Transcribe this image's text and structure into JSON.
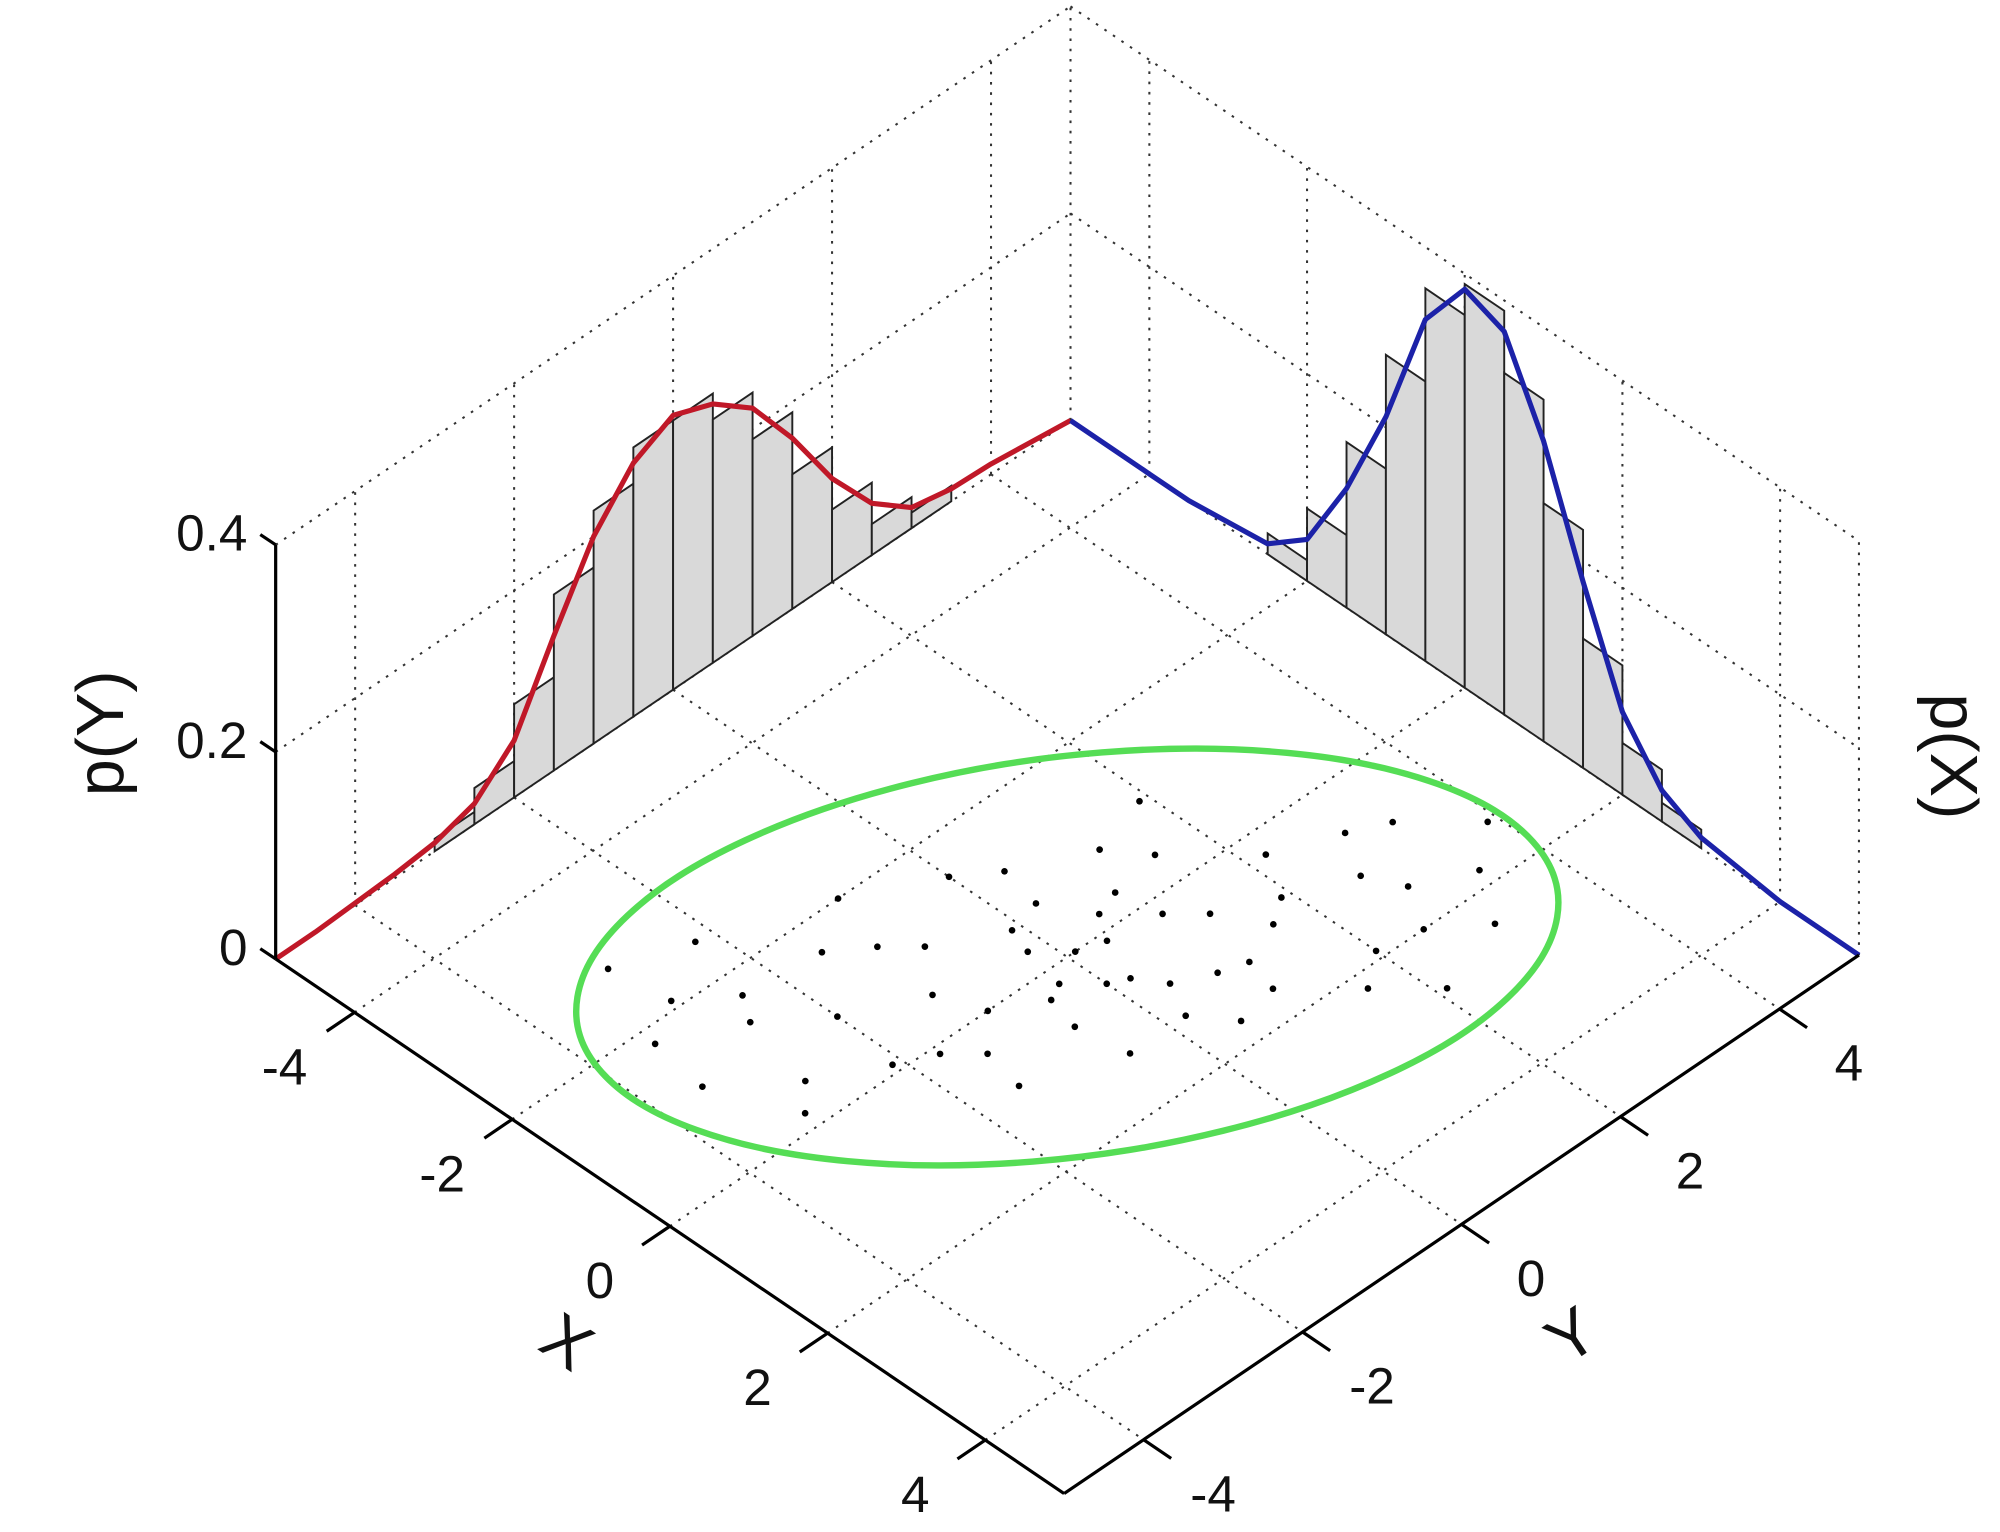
{
  "chart_data": {
    "type": "scatter",
    "xlabel": "X",
    "ylabel": "Y",
    "zlabel_left": "p(Y)",
    "zlabel_right": "p(X)",
    "xlim": [
      -5,
      5
    ],
    "xticks": [
      -4,
      -2,
      0,
      2,
      4
    ],
    "ylim": [
      -5,
      5
    ],
    "yticks": [
      -4,
      -2,
      0,
      2,
      4
    ],
    "zlim": [
      0,
      0.4
    ],
    "zticks": [
      0,
      0.2,
      0.4
    ],
    "grid": true,
    "y_marginal": {
      "color": "#c01828",
      "y": [
        -5,
        -4.5,
        -4,
        -3.5,
        -3,
        -2.5,
        -2,
        -1.5,
        -1,
        -0.5,
        0,
        0.5,
        1,
        1.5,
        2,
        2.5,
        3,
        3.5,
        4,
        4.5,
        5
      ],
      "values": [
        0,
        0,
        0.002,
        0.004,
        0.008,
        0.02,
        0.055,
        0.13,
        0.2,
        0.245,
        0.265,
        0.25,
        0.22,
        0.165,
        0.1,
        0.05,
        0.02,
        0.012,
        0.01,
        0.005,
        0
      ]
    },
    "y_hist": {
      "color": "#d9d9d9",
      "bins": [
        -3,
        -2.5,
        -2,
        -1.5,
        -1,
        -0.5,
        0,
        0.5,
        1,
        1.5,
        2,
        2.5,
        3,
        3.5
      ],
      "values": [
        0.012,
        0.035,
        0.09,
        0.17,
        0.225,
        0.26,
        0.26,
        0.235,
        0.19,
        0.13,
        0.07,
        0.03,
        0.015
      ]
    },
    "x_marginal": {
      "color": "#1c22a8",
      "x": [
        -5,
        -4.5,
        -4,
        -3.5,
        -3,
        -2.5,
        -2,
        -1.5,
        -1,
        -0.5,
        0,
        0.5,
        1,
        1.5,
        2,
        2.5,
        3,
        3.5,
        4,
        4.5,
        5
      ],
      "values": [
        0,
        0,
        0,
        0,
        0.005,
        0.01,
        0.04,
        0.115,
        0.21,
        0.33,
        0.385,
        0.37,
        0.29,
        0.18,
        0.08,
        0.03,
        0.01,
        0.005,
        0,
        0,
        0
      ]
    },
    "x_hist": {
      "color": "#d9d9d9",
      "bins": [
        -2.5,
        -2,
        -1.5,
        -1,
        -0.5,
        0,
        0.5,
        1,
        1.5,
        2,
        2.5,
        3
      ],
      "values": [
        0.02,
        0.07,
        0.16,
        0.27,
        0.36,
        0.39,
        0.33,
        0.23,
        0.125,
        0.05,
        0.018
      ]
    },
    "points": {
      "color": "#000000",
      "x": [
        0.1,
        -0.5,
        0.8,
        1.2,
        -1.0,
        0.3,
        -0.2,
        1.5,
        -1.4,
        0.6,
        2.0,
        -2.1,
        0.9,
        -0.7,
        1.1,
        0.0,
        -0.3,
        0.5,
        1.8,
        -1.6,
        0.4,
        -0.9,
        1.3,
        -1.2,
        0.2,
        2.4,
        -2.5,
        0.7,
        -0.4,
        1.0,
        -0.1,
        1.6,
        -1.8,
        0.3,
        -0.6,
        1.4,
        -1.1,
        0.9,
        -0.8,
        2.2,
        -2.0,
        0.0,
        0.6,
        -0.5,
        1.7,
        -1.5,
        0.2,
        1.1,
        -1.3,
        0.8,
        -0.2,
        2.7,
        -2.8,
        0.5,
        -0.3,
        1.9,
        -1.7,
        0.1,
        -1.0,
        1.3
      ],
      "y": [
        0.4,
        -1.2,
        1.9,
        1.1,
        -0.8,
        -0.5,
        0.6,
        2.8,
        -2.6,
        0.2,
        2.5,
        -2.9,
        0.4,
        0.3,
        2.6,
        -1.0,
        -0.2,
        1.3,
        3.4,
        -1.5,
        -1.4,
        -2.0,
        0.2,
        0.4,
        1.0,
        3.0,
        -2.2,
        -0.6,
        1.5,
        1.6,
        -2.1,
        1.0,
        -3.4,
        2.2,
        -0.1,
        3.9,
        -3.5,
        -1.5,
        1.2,
        1.6,
        -0.9,
        0.1,
        2.9,
        -2.8,
        0.5,
        0.0,
        -0.3,
        0.8,
        -1.1,
        3.3,
        -3.1,
        2.1,
        -3.0,
        0.0,
        0.9,
        2.0,
        -2.4,
        -1.7,
        1.9,
        -0.5
      ]
    },
    "ellipse": {
      "color": "#55dd55",
      "x": [
        2.35,
        1.33,
        0.11,
        -1.13,
        -2.2,
        -2.93,
        -3.22,
        -3.01,
        -2.35,
        -1.33,
        -0.11,
        1.13,
        2.2,
        2.93,
        3.22,
        3.01
      ],
      "y": [
        3.8,
        4.05,
        3.68,
        2.75,
        1.4,
        -0.16,
        -1.7,
        -2.98,
        -3.8,
        -4.05,
        -3.68,
        -2.75,
        -1.4,
        0.16,
        1.7,
        2.98
      ]
    }
  }
}
